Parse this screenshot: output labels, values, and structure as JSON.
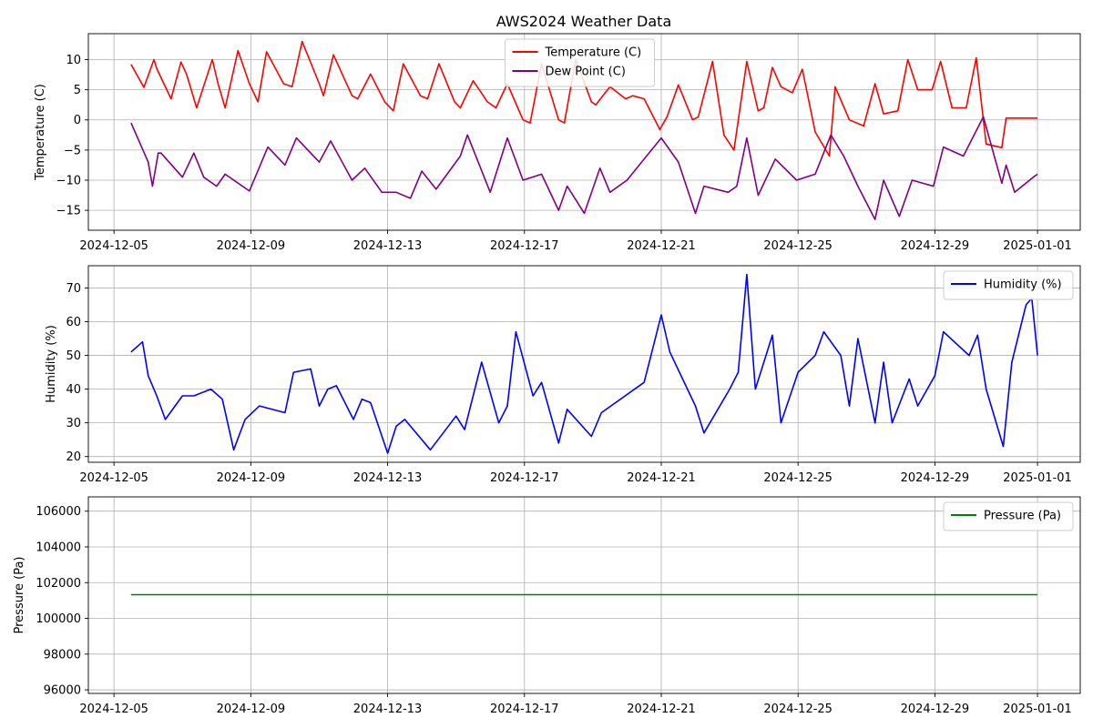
{
  "chart_data": [
    {
      "type": "line",
      "title": "AWS2024 Weather Data",
      "xlabel": "",
      "ylabel": "Temperature (C)",
      "xlim": [
        "2024-12-04T06:00",
        "2025-01-02T06:00"
      ],
      "ylim": [
        -18.3,
        14.3
      ],
      "grid": true,
      "legend_position": "top-center",
      "x_ticks": [
        "2024-12-05",
        "2024-12-09",
        "2024-12-13",
        "2024-12-17",
        "2024-12-21",
        "2024-12-25",
        "2024-12-29",
        "2025-01-01"
      ],
      "y_ticks": [
        10,
        5,
        0,
        -5,
        -10,
        -15
      ],
      "series": [
        {
          "name": "Temperature (C)",
          "color": "#ff0000",
          "x": [
            "2024-12-05T12:00",
            "2024-12-05T21:00",
            "2024-12-06T04:00",
            "2024-12-06T06:00",
            "2024-12-06T16:00",
            "2024-12-06T23:00",
            "2024-12-07T03:00",
            "2024-12-07T10:00",
            "2024-12-07T21:00",
            "2024-12-08T01:00",
            "2024-12-08T06:00",
            "2024-12-08T15:00",
            "2024-12-08T23:00",
            "2024-12-09T05:00",
            "2024-12-09T11:00",
            "2024-12-09T23:00",
            "2024-12-10T05:00",
            "2024-12-10T12:00",
            "2024-12-11T00:00",
            "2024-12-11T03:00",
            "2024-12-11T10:00",
            "2024-12-11T23:00",
            "2024-12-12T03:00",
            "2024-12-12T12:00",
            "2024-12-12T22:00",
            "2024-12-13T04:00",
            "2024-12-13T11:00",
            "2024-12-13T23:00",
            "2024-12-14T04:00",
            "2024-12-14T12:00",
            "2024-12-14T23:00",
            "2024-12-15T03:00",
            "2024-12-15T12:00",
            "2024-12-15T22:00",
            "2024-12-16T04:00",
            "2024-12-16T12:00",
            "2024-12-16T23:00",
            "2024-12-17T04:00",
            "2024-12-17T12:00",
            "2024-12-18T00:00",
            "2024-12-18T04:00",
            "2024-12-18T12:00",
            "2024-12-18T23:00",
            "2024-12-19T02:00",
            "2024-12-19T12:00",
            "2024-12-19T23:00",
            "2024-12-20T04:00",
            "2024-12-20T12:00",
            "2024-12-20T23:00",
            "2024-12-21T04:00",
            "2024-12-21T12:00",
            "2024-12-21T22:00",
            "2024-12-22T02:00",
            "2024-12-22T12:00",
            "2024-12-22T20:00",
            "2024-12-23T03:00",
            "2024-12-23T12:00",
            "2024-12-23T20:00",
            "2024-12-24T00:00",
            "2024-12-24T06:00",
            "2024-12-24T12:00",
            "2024-12-24T20:00",
            "2024-12-25T03:00",
            "2024-12-25T12:00",
            "2024-12-25T22:00",
            "2024-12-26T02:00",
            "2024-12-26T12:00",
            "2024-12-26T22:00",
            "2024-12-27T06:00",
            "2024-12-27T12:00",
            "2024-12-27T22:00",
            "2024-12-28T05:00",
            "2024-12-28T12:00",
            "2024-12-28T22:00",
            "2024-12-29T04:00",
            "2024-12-29T12:00",
            "2024-12-29T22:00",
            "2024-12-30T05:00",
            "2024-12-30T12:00",
            "2024-12-30T23:00",
            "2024-12-31T02:00",
            "2024-12-31T10:00",
            "2024-12-31T21:00",
            "2025-01-01T00:00"
          ],
          "y": [
            9.2,
            5.4,
            10.0,
            8.5,
            3.5,
            9.6,
            7.5,
            2.0,
            10.0,
            6.0,
            2.0,
            11.5,
            6.0,
            3.0,
            11.3,
            6.0,
            5.5,
            13.0,
            6.0,
            4.0,
            10.8,
            4.0,
            3.5,
            7.6,
            3.0,
            1.5,
            9.3,
            4.0,
            3.5,
            9.3,
            3.0,
            2.0,
            6.5,
            3.0,
            2.0,
            6.0,
            0.0,
            -0.5,
            9.3,
            0.0,
            -0.5,
            10.0,
            3.0,
            2.5,
            5.5,
            3.5,
            4.0,
            3.5,
            -1.6,
            0.5,
            5.8,
            0.0,
            0.5,
            9.7,
            -2.5,
            -5.0,
            9.7,
            1.5,
            2.0,
            8.7,
            5.5,
            4.5,
            8.4,
            -2.0,
            -6.0,
            5.5,
            0.0,
            -1.0,
            6.0,
            1.0,
            1.5,
            10.0,
            5.0,
            5.0,
            9.7,
            2.0,
            2.0,
            10.3,
            -4.0,
            -4.6,
            0.3,
            0.3,
            0.3,
            0.3
          ]
        },
        {
          "name": "Dew Point (C)",
          "color": "#800080",
          "x": [
            "2024-12-05T12:00",
            "2024-12-06T00:00",
            "2024-12-06T03:00",
            "2024-12-06T07:00",
            "2024-12-06T09:00",
            "2024-12-07T00:00",
            "2024-12-07T08:00",
            "2024-12-07T15:00",
            "2024-12-08T00:00",
            "2024-12-08T06:00",
            "2024-12-08T23:00",
            "2024-12-09T12:00",
            "2024-12-10T00:00",
            "2024-12-10T08:00",
            "2024-12-11T00:00",
            "2024-12-11T08:00",
            "2024-12-11T23:00",
            "2024-12-12T08:00",
            "2024-12-12T20:00",
            "2024-12-13T06:00",
            "2024-12-13T16:00",
            "2024-12-14T00:00",
            "2024-12-14T10:00",
            "2024-12-15T03:00",
            "2024-12-15T08:00",
            "2024-12-16T00:00",
            "2024-12-16T12:00",
            "2024-12-16T23:00",
            "2024-12-17T12:00",
            "2024-12-18T00:00",
            "2024-12-18T06:00",
            "2024-12-18T18:00",
            "2024-12-19T05:00",
            "2024-12-19T12:00",
            "2024-12-20T00:00",
            "2024-12-20T12:00",
            "2024-12-21T00:00",
            "2024-12-21T12:00",
            "2024-12-22T00:00",
            "2024-12-22T06:00",
            "2024-12-22T23:00",
            "2024-12-23T05:00",
            "2024-12-23T12:00",
            "2024-12-23T20:00",
            "2024-12-24T08:00",
            "2024-12-24T23:00",
            "2024-12-25T12:00",
            "2024-12-25T23:00",
            "2024-12-26T08:00",
            "2024-12-26T18:00",
            "2024-12-27T06:00",
            "2024-12-27T12:00",
            "2024-12-27T23:00",
            "2024-12-28T08:00",
            "2024-12-28T23:00",
            "2024-12-29T06:00",
            "2024-12-29T20:00",
            "2024-12-30T10:00",
            "2024-12-30T23:00",
            "2024-12-31T02:00",
            "2024-12-31T08:00",
            "2024-12-31T21:00",
            "2025-01-01T00:00"
          ],
          "y": [
            -0.5,
            -7.0,
            -11.0,
            -5.5,
            -5.5,
            -9.5,
            -5.5,
            -9.5,
            -11.0,
            -9.0,
            -11.8,
            -4.5,
            -7.5,
            -3.0,
            -7.0,
            -3.5,
            -10.0,
            -8.0,
            -12.0,
            -12.0,
            -13.0,
            -8.5,
            -11.5,
            -6.0,
            -2.5,
            -12.0,
            -3.0,
            -10.0,
            -9.0,
            -15.0,
            -11.0,
            -15.5,
            -8.0,
            -12.0,
            -10.0,
            -6.5,
            -3.0,
            -7.0,
            -15.5,
            -11.0,
            -12.0,
            -11.0,
            -3.0,
            -12.5,
            -6.5,
            -10.0,
            -9.0,
            -2.5,
            -6.0,
            -11.0,
            -16.5,
            -10.0,
            -16.0,
            -10.0,
            -11.0,
            -4.5,
            -6.0,
            0.5,
            -10.5,
            -7.5,
            -12.0,
            -9.5,
            -9.0
          ]
        }
      ]
    },
    {
      "type": "line",
      "title": "",
      "xlabel": "",
      "ylabel": "Humidity (%)",
      "xlim": [
        "2024-12-04T06:00",
        "2025-01-02T06:00"
      ],
      "ylim": [
        18.3,
        76.6
      ],
      "grid": true,
      "legend_position": "top-right",
      "x_ticks": [
        "2024-12-05",
        "2024-12-09",
        "2024-12-13",
        "2024-12-17",
        "2024-12-21",
        "2024-12-25",
        "2024-12-29",
        "2025-01-01"
      ],
      "y_ticks": [
        70,
        60,
        50,
        40,
        30,
        20
      ],
      "series": [
        {
          "name": "Humidity (%)",
          "color": "#0000ff",
          "x": [
            "2024-12-05T12:00",
            "2024-12-05T20:00",
            "2024-12-06T00:00",
            "2024-12-06T06:00",
            "2024-12-06T12:00",
            "2024-12-07T00:00",
            "2024-12-07T08:00",
            "2024-12-07T20:00",
            "2024-12-08T04:00",
            "2024-12-08T12:00",
            "2024-12-08T20:00",
            "2024-12-09T06:00",
            "2024-12-10T00:00",
            "2024-12-10T06:00",
            "2024-12-10T18:00",
            "2024-12-11T00:00",
            "2024-12-11T06:00",
            "2024-12-11T12:00",
            "2024-12-12T00:00",
            "2024-12-12T06:00",
            "2024-12-12T12:00",
            "2024-12-13T00:00",
            "2024-12-13T06:00",
            "2024-12-13T12:00",
            "2024-12-14T06:00",
            "2024-12-15T00:00",
            "2024-12-15T06:00",
            "2024-12-15T18:00",
            "2024-12-16T06:00",
            "2024-12-16T12:00",
            "2024-12-16T18:00",
            "2024-12-17T06:00",
            "2024-12-17T12:00",
            "2024-12-18T00:00",
            "2024-12-18T06:00",
            "2024-12-18T23:00",
            "2024-12-19T06:00",
            "2024-12-20T12:00",
            "2024-12-21T00:00",
            "2024-12-21T06:00",
            "2024-12-22T00:00",
            "2024-12-22T06:00",
            "2024-12-23T00:00",
            "2024-12-23T06:00",
            "2024-12-23T12:00",
            "2024-12-23T18:00",
            "2024-12-24T06:00",
            "2024-12-24T12:00",
            "2024-12-25T00:00",
            "2024-12-25T12:00",
            "2024-12-25T18:00",
            "2024-12-26T06:00",
            "2024-12-26T12:00",
            "2024-12-26T18:00",
            "2024-12-27T06:00",
            "2024-12-27T12:00",
            "2024-12-27T18:00",
            "2024-12-28T06:00",
            "2024-12-28T12:00",
            "2024-12-29T00:00",
            "2024-12-29T06:00",
            "2024-12-30T00:00",
            "2024-12-30T06:00",
            "2024-12-30T12:00",
            "2024-12-31T00:00",
            "2024-12-31T06:00",
            "2024-12-31T16:00",
            "2024-12-31T20:00",
            "2025-01-01T00:00"
          ],
          "y": [
            51,
            54,
            44,
            38,
            31,
            38,
            38,
            40,
            37,
            22,
            31,
            35,
            33,
            45,
            46,
            35,
            40,
            41,
            31,
            37,
            36,
            21,
            29,
            31,
            22,
            32,
            28,
            48,
            30,
            35,
            57,
            38,
            42,
            24,
            34,
            26,
            33,
            42,
            62,
            51,
            35,
            27,
            40,
            45,
            74,
            40,
            56,
            30,
            45,
            50,
            57,
            50,
            35,
            55,
            30,
            48,
            30,
            43,
            35,
            44,
            57,
            50,
            56,
            40,
            23,
            48,
            65,
            67,
            50
          ]
        }
      ]
    },
    {
      "type": "line",
      "title": "",
      "xlabel": "",
      "ylabel": "Pressure (Pa)",
      "xlim": [
        "2024-12-04T06:00",
        "2025-01-02T06:00"
      ],
      "ylim": [
        95800,
        106800
      ],
      "grid": true,
      "legend_position": "top-right",
      "x_ticks": [
        "2024-12-05",
        "2024-12-09",
        "2024-12-13",
        "2024-12-17",
        "2024-12-21",
        "2024-12-25",
        "2024-12-29",
        "2025-01-01"
      ],
      "y_ticks": [
        106000,
        104000,
        102000,
        100000,
        98000,
        96000
      ],
      "series": [
        {
          "name": "Pressure (Pa)",
          "color": "#008000",
          "x": [
            "2024-12-05T12:00",
            "2025-01-01T00:00"
          ],
          "y": [
            101325,
            101325
          ]
        }
      ]
    }
  ]
}
